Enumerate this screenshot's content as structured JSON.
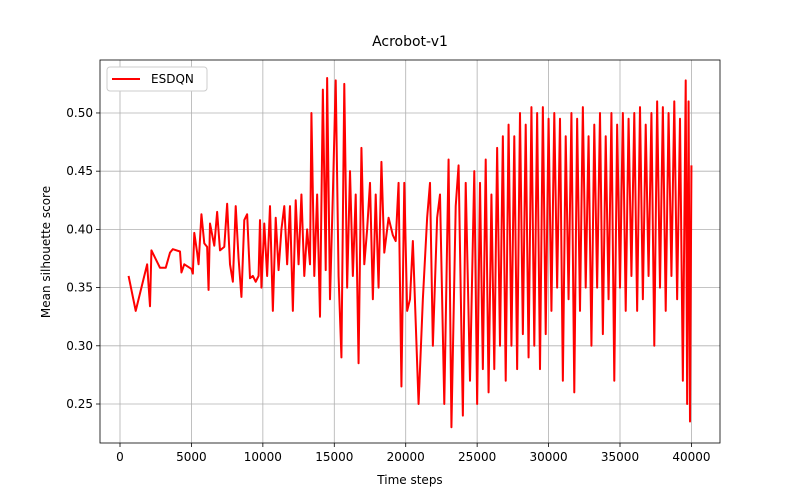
{
  "chart_data": {
    "type": "line",
    "title": "Acrobot-v1",
    "x_label": "Time steps",
    "y_label": "Mean silhouette score",
    "xlim": [
      -1400,
      42000
    ],
    "ylim": [
      0.2165,
      0.5455
    ],
    "xticks": [
      0,
      5000,
      10000,
      15000,
      20000,
      25000,
      30000,
      35000,
      40000
    ],
    "yticks": [
      0.25,
      {
        "value": 0.3,
        "label": "0.30"
      },
      0.35,
      {
        "value": 0.4,
        "label": "0.40"
      },
      0.45,
      {
        "value": 0.5,
        "label": "0.50"
      }
    ],
    "grid": true,
    "legend": "upper left",
    "x": [
      600,
      1100,
      1600,
      1900,
      2100,
      2200,
      2800,
      3200,
      3500,
      3700,
      4200,
      4300,
      4500,
      5000,
      5100,
      5200,
      5400,
      5500,
      5700,
      5900,
      6100,
      6200,
      6300,
      6600,
      6800,
      7000,
      7300,
      7500,
      7700,
      7900,
      8100,
      8300,
      8500,
      8700,
      8900,
      9100,
      9300,
      9500,
      9700,
      9800,
      9900,
      10100,
      10300,
      10500,
      10700,
      10900,
      11100,
      11300,
      11500,
      11700,
      11900,
      12100,
      12300,
      12500,
      12700,
      12900,
      13100,
      13300,
      13400,
      13600,
      13800,
      14000,
      14200,
      14400,
      14500,
      14700,
      14900,
      15100,
      15300,
      15500,
      15700,
      15900,
      16100,
      16300,
      16500,
      16700,
      16900,
      17100,
      17300,
      17500,
      17700,
      17900,
      18100,
      18300,
      18500,
      18800,
      19100,
      19300,
      19500,
      19700,
      19900,
      20100,
      20300,
      20500,
      20700,
      20900,
      21200,
      21500,
      21700,
      21900,
      22200,
      22400,
      22700,
      23000,
      23200,
      23500,
      23700,
      24000,
      24200,
      24500,
      24800,
      25000,
      25200,
      25400,
      25600,
      25800,
      26000,
      26200,
      26400,
      26600,
      26800,
      27000,
      27200,
      27400,
      27600,
      27800,
      28000,
      28200,
      28400,
      28600,
      28800,
      29000,
      29200,
      29400,
      29600,
      29800,
      30000,
      30200,
      30400,
      30600,
      30800,
      31000,
      31200,
      31400,
      31600,
      31800,
      32000,
      32200,
      32400,
      32600,
      32800,
      33000,
      33200,
      33400,
      33600,
      33800,
      34000,
      34200,
      34400,
      34600,
      34800,
      35000,
      35200,
      35400,
      35600,
      35800,
      36000,
      36200,
      36400,
      36600,
      36800,
      37000,
      37200,
      37400,
      37600,
      37800,
      38000,
      38200,
      38400,
      38600,
      38800,
      39000,
      39200,
      39400,
      39600,
      39700,
      39800,
      39900,
      40000
    ],
    "series": [
      {
        "name": "ESDQN",
        "color": "#ff0000",
        "values": [
          0.36,
          0.33,
          0.355,
          0.37,
          0.334,
          0.382,
          0.367,
          0.367,
          0.38,
          0.383,
          0.381,
          0.363,
          0.37,
          0.366,
          0.362,
          0.397,
          0.38,
          0.37,
          0.413,
          0.388,
          0.385,
          0.348,
          0.405,
          0.386,
          0.415,
          0.382,
          0.385,
          0.422,
          0.37,
          0.355,
          0.42,
          0.375,
          0.342,
          0.408,
          0.413,
          0.358,
          0.36,
          0.355,
          0.36,
          0.408,
          0.35,
          0.405,
          0.36,
          0.42,
          0.33,
          0.41,
          0.365,
          0.4,
          0.42,
          0.37,
          0.42,
          0.33,
          0.425,
          0.37,
          0.43,
          0.36,
          0.4,
          0.37,
          0.5,
          0.36,
          0.43,
          0.325,
          0.52,
          0.365,
          0.53,
          0.34,
          0.43,
          0.528,
          0.36,
          0.29,
          0.525,
          0.35,
          0.45,
          0.36,
          0.43,
          0.285,
          0.47,
          0.37,
          0.4,
          0.44,
          0.34,
          0.43,
          0.35,
          0.458,
          0.38,
          0.41,
          0.395,
          0.39,
          0.44,
          0.265,
          0.44,
          0.33,
          0.34,
          0.39,
          0.32,
          0.25,
          0.34,
          0.41,
          0.44,
          0.3,
          0.41,
          0.43,
          0.25,
          0.46,
          0.23,
          0.42,
          0.455,
          0.24,
          0.44,
          0.27,
          0.45,
          0.25,
          0.44,
          0.28,
          0.46,
          0.26,
          0.43,
          0.28,
          0.47,
          0.3,
          0.48,
          0.27,
          0.49,
          0.3,
          0.48,
          0.28,
          0.5,
          0.31,
          0.49,
          0.29,
          0.505,
          0.3,
          0.5,
          0.28,
          0.505,
          0.31,
          0.495,
          0.33,
          0.5,
          0.35,
          0.495,
          0.27,
          0.48,
          0.34,
          0.5,
          0.26,
          0.495,
          0.33,
          0.505,
          0.35,
          0.48,
          0.3,
          0.49,
          0.35,
          0.5,
          0.31,
          0.48,
          0.34,
          0.5,
          0.27,
          0.49,
          0.35,
          0.5,
          0.33,
          0.495,
          0.36,
          0.5,
          0.33,
          0.505,
          0.34,
          0.49,
          0.36,
          0.5,
          0.3,
          0.51,
          0.35,
          0.505,
          0.33,
          0.5,
          0.36,
          0.51,
          0.34,
          0.495,
          0.27,
          0.528,
          0.25,
          0.51,
          0.235,
          0.455
        ]
      }
    ]
  }
}
